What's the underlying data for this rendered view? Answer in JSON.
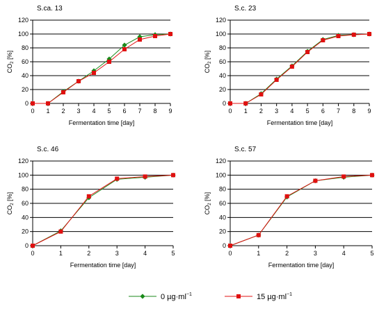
{
  "chart_data": [
    {
      "type": "line",
      "title": "S.ca. 13",
      "xlabel": "Fermentation time [day]",
      "ylabel": "CO2 [%]",
      "xlim": [
        0,
        9
      ],
      "ylim": [
        0,
        120
      ],
      "xticks": [
        0,
        1,
        2,
        3,
        4,
        5,
        6,
        7,
        8,
        9
      ],
      "yticks": [
        0,
        20,
        40,
        60,
        80,
        100,
        120
      ],
      "grid": "horizontal",
      "series": [
        {
          "name": "0 µg·ml⁻¹",
          "x": [
            0,
            1,
            2,
            3,
            4,
            5,
            6,
            7,
            8,
            9
          ],
          "values": [
            0,
            0,
            17,
            32,
            47,
            64,
            84,
            96,
            99,
            100
          ]
        },
        {
          "name": "15 µg·ml⁻¹",
          "x": [
            0,
            1,
            2,
            3,
            4,
            5,
            6,
            7,
            8,
            9
          ],
          "values": [
            0,
            0,
            16,
            32,
            44,
            60,
            78,
            92,
            97,
            100
          ]
        }
      ]
    },
    {
      "type": "line",
      "title": "S.c. 23",
      "xlabel": "Fermentation time [day]",
      "ylabel": "CO2 [%]",
      "xlim": [
        0,
        9
      ],
      "ylim": [
        0,
        120
      ],
      "xticks": [
        0,
        1,
        2,
        3,
        4,
        5,
        6,
        7,
        8,
        9
      ],
      "yticks": [
        0,
        20,
        40,
        60,
        80,
        100,
        120
      ],
      "grid": "horizontal",
      "series": [
        {
          "name": "0 µg·ml⁻¹",
          "x": [
            0,
            1,
            2,
            3,
            4,
            5,
            6,
            7,
            8,
            9
          ],
          "values": [
            0,
            0,
            14,
            35,
            54,
            75,
            92,
            98,
            99,
            100
          ]
        },
        {
          "name": "15 µg·ml⁻¹",
          "x": [
            0,
            1,
            2,
            3,
            4,
            5,
            6,
            7,
            8,
            9
          ],
          "values": [
            0,
            0,
            13,
            34,
            53,
            74,
            91,
            97,
            99,
            100
          ]
        }
      ]
    },
    {
      "type": "line",
      "title": "S.c. 46",
      "xlabel": "Fermentation time [day]",
      "ylabel": "CO2 [%]",
      "xlim": [
        0,
        5
      ],
      "ylim": [
        0,
        120
      ],
      "xticks": [
        0,
        1,
        2,
        3,
        4,
        5
      ],
      "yticks": [
        0,
        20,
        40,
        60,
        80,
        100,
        120
      ],
      "grid": "horizontal",
      "series": [
        {
          "name": "0 µg·ml⁻¹",
          "x": [
            0,
            1,
            2,
            3,
            4,
            5
          ],
          "values": [
            0,
            21,
            68,
            94,
            97,
            100
          ]
        },
        {
          "name": "15 µg·ml⁻¹",
          "x": [
            0,
            1,
            2,
            3,
            4,
            5
          ],
          "values": [
            0,
            20,
            70,
            95,
            98,
            100
          ]
        }
      ]
    },
    {
      "type": "line",
      "title": "S.c. 57",
      "xlabel": "Fermentation time [day]",
      "ylabel": "CO2 [%]",
      "xlim": [
        0,
        5
      ],
      "ylim": [
        0,
        120
      ],
      "xticks": [
        0,
        1,
        2,
        3,
        4,
        5
      ],
      "yticks": [
        0,
        20,
        40,
        60,
        80,
        100,
        120
      ],
      "grid": "horizontal",
      "series": [
        {
          "name": "0 µg·ml⁻¹",
          "x": [
            0,
            1,
            2,
            3,
            4,
            5
          ],
          "values": [
            0,
            15,
            69,
            92,
            97,
            100
          ]
        },
        {
          "name": "15 µg·ml⁻¹",
          "x": [
            0,
            1,
            2,
            3,
            4,
            5
          ],
          "values": [
            0,
            15,
            70,
            92,
            98,
            100
          ]
        }
      ]
    }
  ],
  "legend": {
    "placement": "bottom",
    "entries": [
      {
        "label": "0  µg·ml",
        "sup": "−1",
        "color": "#1a8a1a",
        "marker": "diamond"
      },
      {
        "label": "15  µg·ml",
        "sup": "−1",
        "color": "#e01010",
        "marker": "square"
      }
    ]
  }
}
